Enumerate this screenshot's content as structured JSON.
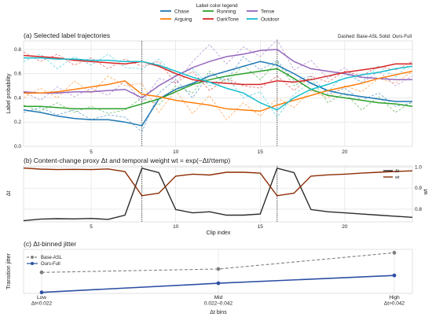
{
  "legend": {
    "title": "Label color legend",
    "entries": [
      {
        "name": "Chase",
        "color": "#1f77b4"
      },
      {
        "name": "Running",
        "color": "#2ca02c"
      },
      {
        "name": "Tense",
        "color": "#9467bd"
      },
      {
        "name": "Arguing",
        "color": "#ff7f0e"
      },
      {
        "name": "DarkTone",
        "color": "#d62728"
      },
      {
        "name": "Outdoor",
        "color": "#17becf"
      }
    ]
  },
  "chart_data": [
    {
      "type": "line",
      "title": "(a) Selected label trajectories",
      "note": "Dashed: Base-ASL    Solid: Ours-Full",
      "ylabel": "Label probability",
      "xlim": [
        1,
        24
      ],
      "ylim": [
        0.0,
        0.87
      ],
      "xticks": [
        "5",
        "10",
        "15",
        "20"
      ],
      "yticks": [
        "0.0",
        "0.2",
        "0.4",
        "0.6",
        "0.8"
      ],
      "vlines": [
        8,
        16
      ],
      "x": [
        1,
        2,
        3,
        4,
        5,
        6,
        7,
        8,
        9,
        10,
        11,
        12,
        13,
        14,
        15,
        16,
        17,
        18,
        19,
        20,
        21,
        22,
        23,
        24
      ],
      "series": [
        {
          "name": "Chase",
          "color": "#1f77b4",
          "style": "solid",
          "values": [
            0.3,
            0.28,
            0.25,
            0.23,
            0.22,
            0.22,
            0.2,
            0.17,
            0.39,
            0.47,
            0.52,
            0.58,
            0.62,
            0.66,
            0.7,
            0.67,
            0.6,
            0.52,
            0.46,
            0.43,
            0.41,
            0.39,
            0.37,
            0.37
          ]
        },
        {
          "name": "Running",
          "color": "#2ca02c",
          "style": "solid",
          "values": [
            0.33,
            0.33,
            0.32,
            0.31,
            0.31,
            0.31,
            0.31,
            0.35,
            0.39,
            0.45,
            0.51,
            0.55,
            0.58,
            0.6,
            0.62,
            0.64,
            0.56,
            0.47,
            0.42,
            0.4,
            0.38,
            0.36,
            0.35,
            0.33
          ]
        },
        {
          "name": "Tense",
          "color": "#9467bd",
          "style": "solid",
          "values": [
            0.45,
            0.44,
            0.44,
            0.45,
            0.45,
            0.46,
            0.47,
            0.4,
            0.5,
            0.58,
            0.65,
            0.7,
            0.74,
            0.76,
            0.79,
            0.8,
            0.7,
            0.64,
            0.62,
            0.6,
            0.57,
            0.56,
            0.55,
            0.55
          ]
        },
        {
          "name": "Arguing",
          "color": "#ff7f0e",
          "style": "solid",
          "values": [
            0.44,
            0.44,
            0.45,
            0.47,
            0.49,
            0.51,
            0.54,
            0.43,
            0.41,
            0.38,
            0.36,
            0.34,
            0.31,
            0.3,
            0.29,
            0.34,
            0.38,
            0.42,
            0.46,
            0.49,
            0.52,
            0.56,
            0.59,
            0.62
          ]
        },
        {
          "name": "DarkTone",
          "color": "#d62728",
          "style": "solid",
          "values": [
            0.75,
            0.74,
            0.73,
            0.71,
            0.7,
            0.69,
            0.68,
            0.7,
            0.66,
            0.6,
            0.55,
            0.53,
            0.52,
            0.51,
            0.51,
            0.54,
            0.53,
            0.55,
            0.58,
            0.61,
            0.63,
            0.65,
            0.68,
            0.68
          ]
        },
        {
          "name": "Outdoor",
          "color": "#17becf",
          "style": "solid",
          "values": [
            0.73,
            0.73,
            0.72,
            0.72,
            0.71,
            0.71,
            0.7,
            0.7,
            0.67,
            0.62,
            0.57,
            0.53,
            0.48,
            0.44,
            0.36,
            0.3,
            0.4,
            0.47,
            0.51,
            0.56,
            0.59,
            0.61,
            0.64,
            0.66
          ]
        },
        {
          "name": "Chase",
          "color": "#1f77b4",
          "style": "dashed",
          "values": [
            0.28,
            0.32,
            0.26,
            0.3,
            0.22,
            0.26,
            0.24,
            0.12,
            0.44,
            0.55,
            0.4,
            0.6,
            0.54,
            0.74,
            0.63,
            0.71,
            0.54,
            0.58,
            0.43,
            0.48,
            0.38,
            0.44,
            0.33,
            0.36
          ]
        },
        {
          "name": "Running",
          "color": "#2ca02c",
          "style": "dashed",
          "values": [
            0.34,
            0.29,
            0.36,
            0.28,
            0.33,
            0.27,
            0.3,
            0.4,
            0.34,
            0.5,
            0.44,
            0.62,
            0.52,
            0.67,
            0.55,
            0.7,
            0.5,
            0.56,
            0.36,
            0.44,
            0.3,
            0.41,
            0.28,
            0.37
          ]
        },
        {
          "name": "Tense",
          "color": "#9467bd",
          "style": "dashed",
          "values": [
            0.45,
            0.38,
            0.49,
            0.41,
            0.48,
            0.42,
            0.54,
            0.36,
            0.56,
            0.52,
            0.7,
            0.84,
            0.68,
            0.82,
            0.74,
            0.88,
            0.63,
            0.71,
            0.56,
            0.65,
            0.52,
            0.62,
            0.5,
            0.58
          ]
        },
        {
          "name": "Arguing",
          "color": "#ff7f0e",
          "style": "dashed",
          "values": [
            0.4,
            0.48,
            0.4,
            0.54,
            0.44,
            0.58,
            0.5,
            0.52,
            0.28,
            0.46,
            0.27,
            0.42,
            0.22,
            0.36,
            0.25,
            0.4,
            0.32,
            0.46,
            0.4,
            0.5,
            0.45,
            0.56,
            0.52,
            0.62
          ]
        },
        {
          "name": "DarkTone",
          "color": "#d62728",
          "style": "dashed",
          "values": [
            0.78,
            0.7,
            0.76,
            0.67,
            0.73,
            0.64,
            0.72,
            0.66,
            0.7,
            0.52,
            0.62,
            0.46,
            0.56,
            0.5,
            0.48,
            0.58,
            0.46,
            0.58,
            0.53,
            0.62,
            0.58,
            0.66,
            0.63,
            0.7
          ]
        },
        {
          "name": "Outdoor",
          "color": "#17becf",
          "style": "dashed",
          "values": [
            0.7,
            0.76,
            0.64,
            0.74,
            0.67,
            0.76,
            0.65,
            0.64,
            0.72,
            0.58,
            0.64,
            0.5,
            0.58,
            0.4,
            0.45,
            0.24,
            0.43,
            0.53,
            0.45,
            0.6,
            0.53,
            0.66,
            0.57,
            0.7
          ]
        }
      ]
    },
    {
      "type": "line",
      "title": "(b) Content-change proxy Δt and temporal weight wt = exp(−Δt/τtemp)",
      "xlabel": "Clip index",
      "ylabel": "Δt",
      "ylabel_right": "wt",
      "xlim": [
        1,
        24
      ],
      "ylim": [
        0.0,
        0.25
      ],
      "ylim_right": [
        0.74,
        1.005
      ],
      "xticks": [
        "5",
        "10",
        "15",
        "20"
      ],
      "yticks_right": [
        "0.8",
        "0.9",
        "1.0"
      ],
      "vlines": [
        8,
        16
      ],
      "x": [
        1,
        2,
        3,
        4,
        5,
        6,
        7,
        8,
        9,
        10,
        11,
        12,
        13,
        14,
        15,
        16,
        17,
        18,
        19,
        20,
        21,
        22,
        23,
        24
      ],
      "series": [
        {
          "name": "Δt",
          "color": "#2b2b2b",
          "axis": "left",
          "values": [
            0.005,
            0.012,
            0.014,
            0.013,
            0.015,
            0.011,
            0.03,
            0.24,
            0.22,
            0.055,
            0.04,
            0.045,
            0.03,
            0.03,
            0.035,
            0.24,
            0.22,
            0.055,
            0.045,
            0.04,
            0.035,
            0.03,
            0.025,
            0.02
          ]
        },
        {
          "name": "wt",
          "color": "#8c2d04",
          "axis": "right",
          "values": [
            0.995,
            0.99,
            0.988,
            0.989,
            0.988,
            0.991,
            0.978,
            0.864,
            0.876,
            0.957,
            0.966,
            0.962,
            0.975,
            0.975,
            0.971,
            0.864,
            0.876,
            0.957,
            0.963,
            0.966,
            0.971,
            0.975,
            0.979,
            0.982
          ]
        }
      ],
      "legend": [
        "Δt",
        "wt"
      ]
    },
    {
      "type": "line",
      "title": "(c) Δt-binned jitter",
      "xlabel": "Δt bins",
      "ylabel": "Transition jitter",
      "categories": [
        "Low\nΔt<0.022",
        "Mid\n0.022–0.042",
        "High\nΔt>0.042"
      ],
      "ylim": [
        0.0,
        0.13
      ],
      "series": [
        {
          "name": "Base-ASL",
          "color": "#7f7f7f",
          "style": "dashed",
          "values": [
            0.062,
            0.072,
            0.12
          ]
        },
        {
          "name": "Ours-Full",
          "color": "#2c4fa3",
          "style": "solid",
          "values": [
            0.003,
            0.03,
            0.053
          ]
        }
      ]
    }
  ]
}
